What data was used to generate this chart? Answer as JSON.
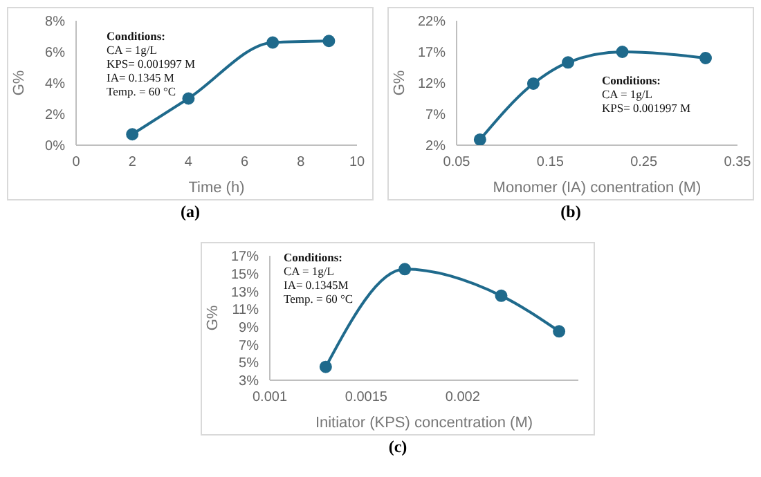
{
  "chart_data": [
    {
      "type": "line",
      "subtitle": "(a)",
      "xlabel": "Time (h)",
      "ylabel": "G%",
      "color": "#1f6a8c",
      "marker": "circle",
      "grid": false,
      "x": [
        2,
        4,
        7,
        9
      ],
      "values": [
        0.7,
        3.0,
        6.6,
        6.7
      ],
      "xlim": [
        0,
        10
      ],
      "xticks": [
        0,
        2,
        4,
        6,
        8,
        10
      ],
      "ylim": [
        0,
        8
      ],
      "yticks": [
        {
          "value": 0,
          "label": "0%"
        },
        {
          "value": 2,
          "label": "2%"
        },
        {
          "value": 4,
          "label": "4%"
        },
        {
          "value": 6,
          "label": "6%"
        },
        {
          "value": 8,
          "label": "8%"
        }
      ],
      "annotations": [
        "Conditions:",
        "CA = 1g/L",
        "KPS= 0.001997 M",
        "IA= 0.1345 M",
        "Temp. = 60 °C"
      ]
    },
    {
      "type": "line",
      "subtitle": "(b)",
      "xlabel": "Monomer (IA) conentration (M)",
      "ylabel": "G%",
      "color": "#1f6a8c",
      "marker": "circle",
      "grid": false,
      "x": [
        0.075,
        0.132,
        0.169,
        0.227,
        0.316
      ],
      "values": [
        2.9,
        11.9,
        15.3,
        17.0,
        16.0
      ],
      "xlim": [
        0.05,
        0.35
      ],
      "xticks": [
        0.05,
        0.15,
        0.25,
        0.35
      ],
      "ylim": [
        2,
        22
      ],
      "yticks": [
        {
          "value": 2,
          "label": "2%"
        },
        {
          "value": 7,
          "label": "7%"
        },
        {
          "value": 12,
          "label": "12%"
        },
        {
          "value": 17,
          "label": "17%"
        },
        {
          "value": 22,
          "label": "22%"
        }
      ],
      "annotations": [
        "Conditions:",
        "CA = 1g/L",
        "KPS= 0.001997 M"
      ]
    },
    {
      "type": "line",
      "subtitle": "(c)",
      "xlabel": "Initiator (KPS) concentration (M)",
      "ylabel": "G%",
      "color": "#1f6a8c",
      "marker": "circle",
      "grid": false,
      "x": [
        0.00129,
        0.0017,
        0.0022,
        0.0025
      ],
      "values": [
        4.5,
        15.5,
        12.5,
        8.5
      ],
      "xlim": [
        0.001,
        0.0026
      ],
      "xticks": [
        0.001,
        0.0015,
        0.002
      ],
      "ylim": [
        3,
        17
      ],
      "yticks": [
        {
          "value": 3,
          "label": "3%"
        },
        {
          "value": 5,
          "label": "5%"
        },
        {
          "value": 7,
          "label": "7%"
        },
        {
          "value": 9,
          "label": "9%"
        },
        {
          "value": 11,
          "label": "11%"
        },
        {
          "value": 13,
          "label": "13%"
        },
        {
          "value": 15,
          "label": "15%"
        },
        {
          "value": 17,
          "label": "17%"
        }
      ],
      "annotations": [
        "Conditions:",
        "CA = 1g/L",
        "IA= 0.1345M",
        "Temp. = 60 °C"
      ]
    }
  ]
}
